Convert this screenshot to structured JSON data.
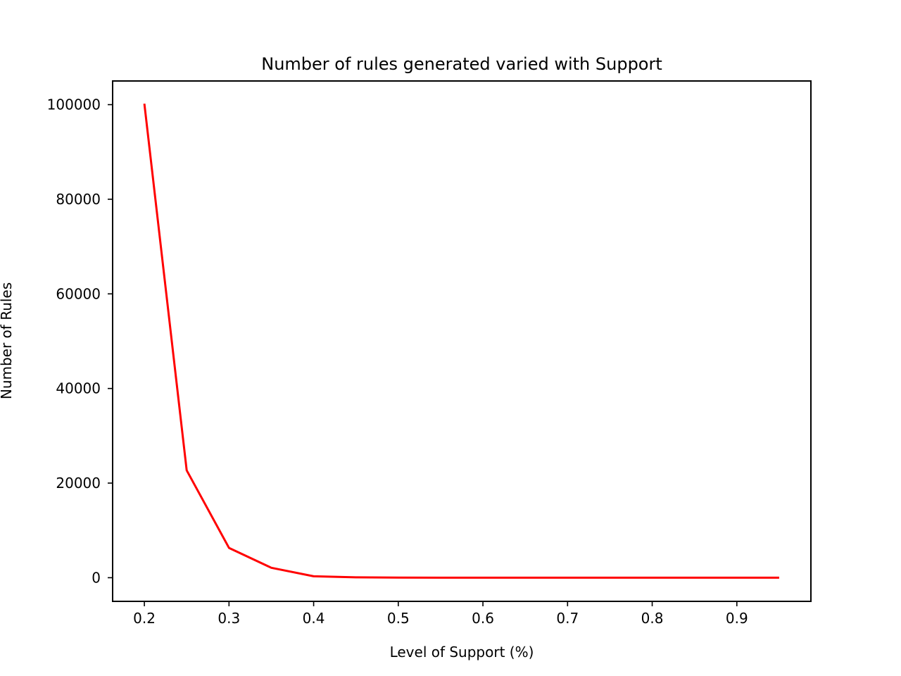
{
  "chart_data": {
    "type": "line",
    "title": "Number of rules generated varied with Support",
    "xlabel": "Level of Support (%)",
    "ylabel": "Number of Rules",
    "xlim": [
      0.1625,
      0.9875
    ],
    "ylim": [
      -5000,
      105000
    ],
    "xticks": [
      0.2,
      0.3,
      0.4,
      0.5,
      0.6,
      0.7,
      0.8,
      0.9
    ],
    "xtick_labels": [
      "0.2",
      "0.3",
      "0.4",
      "0.5",
      "0.6",
      "0.7",
      "0.8",
      "0.9"
    ],
    "yticks": [
      0,
      20000,
      40000,
      60000,
      80000,
      100000
    ],
    "ytick_labels": [
      "0",
      "20000",
      "40000",
      "60000",
      "80000",
      "100000"
    ],
    "grid": false,
    "series": [
      {
        "color": "#ff0000",
        "x": [
          0.2,
          0.25,
          0.3,
          0.35,
          0.4,
          0.45,
          0.5,
          0.55,
          0.6,
          0.65,
          0.7,
          0.75,
          0.8,
          0.85,
          0.9,
          0.95
        ],
        "y": [
          100200,
          22700,
          6300,
          2100,
          300,
          80,
          30,
          10,
          5,
          3,
          2,
          1,
          1,
          1,
          1,
          1
        ]
      }
    ]
  }
}
